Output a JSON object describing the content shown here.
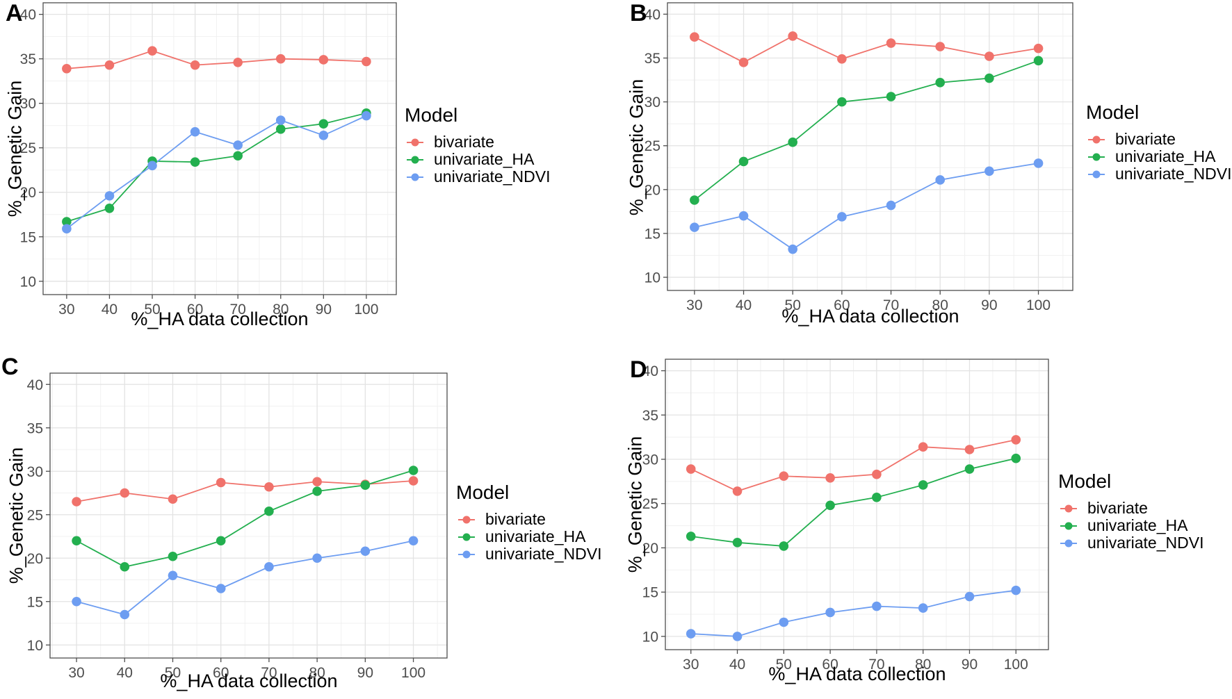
{
  "figure": {
    "y_axis_label": "%_Genetic Gain",
    "x_axis_label": "%_HA data collection",
    "legend_title": "Model",
    "series": [
      {
        "name": "bivariate",
        "color": "#F0726B"
      },
      {
        "name": "univariate_HA",
        "color": "#23AF4F"
      },
      {
        "name": "univariate_NDVI",
        "color": "#6D9DF1"
      }
    ],
    "panel_border_color": "#4D4D4D",
    "grid_major_color": "#E3E3E3",
    "grid_minor_color": "#F1F1F1",
    "tick_label_color": "#4D4D4D"
  },
  "chart_data": [
    {
      "panel": "A",
      "type": "line",
      "title": "",
      "xlabel": "%_HA data collection",
      "ylabel": "%_Genetic Gain",
      "x": [
        30,
        40,
        50,
        60,
        70,
        80,
        90,
        100
      ],
      "x_ticks": [
        30,
        40,
        50,
        60,
        70,
        80,
        90,
        100
      ],
      "y_ticks": [
        10,
        15,
        20,
        25,
        30,
        35,
        40
      ],
      "xlim": [
        24.5,
        107
      ],
      "ylim": [
        8.5,
        41.3
      ],
      "grid": true,
      "legend_position": "right",
      "series": [
        {
          "name": "bivariate",
          "values": [
            33.9,
            34.3,
            35.9,
            34.3,
            34.6,
            35.0,
            34.9,
            34.7
          ]
        },
        {
          "name": "univariate_HA",
          "values": [
            16.7,
            18.2,
            23.5,
            23.4,
            24.1,
            27.1,
            27.7,
            28.9
          ]
        },
        {
          "name": "univariate_NDVI",
          "values": [
            15.9,
            19.6,
            23.0,
            26.8,
            25.3,
            28.1,
            26.4,
            28.6
          ]
        }
      ]
    },
    {
      "panel": "B",
      "type": "line",
      "title": "",
      "xlabel": "%_HA data collection",
      "ylabel": "%_Genetic Gain",
      "x": [
        30,
        40,
        50,
        60,
        70,
        80,
        90,
        100
      ],
      "x_ticks": [
        30,
        40,
        50,
        60,
        70,
        80,
        90,
        100
      ],
      "y_ticks": [
        10,
        15,
        20,
        25,
        30,
        35,
        40
      ],
      "xlim": [
        24.5,
        107
      ],
      "ylim": [
        8.5,
        41.3
      ],
      "grid": true,
      "legend_position": "right",
      "series": [
        {
          "name": "bivariate",
          "values": [
            37.4,
            34.5,
            37.5,
            34.9,
            36.7,
            36.3,
            35.2,
            36.1
          ]
        },
        {
          "name": "univariate_HA",
          "values": [
            18.8,
            23.2,
            25.4,
            30.0,
            30.6,
            32.2,
            32.7,
            34.7
          ]
        },
        {
          "name": "univariate_NDVI",
          "values": [
            15.7,
            17.0,
            13.2,
            16.9,
            18.2,
            21.1,
            22.1,
            23.0
          ]
        }
      ]
    },
    {
      "panel": "C",
      "type": "line",
      "title": "",
      "xlabel": "%_HA data collection",
      "ylabel": "%_Genetic Gain",
      "x": [
        30,
        40,
        50,
        60,
        70,
        80,
        90,
        100
      ],
      "x_ticks": [
        30,
        40,
        50,
        60,
        70,
        80,
        90,
        100
      ],
      "y_ticks": [
        10,
        15,
        20,
        25,
        30,
        35,
        40
      ],
      "xlim": [
        24.5,
        107
      ],
      "ylim": [
        8.5,
        41.3
      ],
      "grid": true,
      "legend_position": "right",
      "series": [
        {
          "name": "bivariate",
          "values": [
            26.5,
            27.5,
            26.8,
            28.7,
            28.2,
            28.8,
            28.5,
            28.9
          ]
        },
        {
          "name": "univariate_HA",
          "values": [
            22.0,
            19.0,
            20.2,
            22.0,
            25.4,
            27.7,
            28.4,
            30.1
          ]
        },
        {
          "name": "univariate_NDVI",
          "values": [
            15.0,
            13.5,
            18.0,
            16.5,
            19.0,
            20.0,
            20.8,
            22.0
          ]
        }
      ]
    },
    {
      "panel": "D",
      "type": "line",
      "title": "",
      "xlabel": "%_HA data collection",
      "ylabel": "%_Genetic Gain",
      "x": [
        30,
        40,
        50,
        60,
        70,
        80,
        90,
        100
      ],
      "x_ticks": [
        30,
        40,
        50,
        60,
        70,
        80,
        90,
        100
      ],
      "y_ticks": [
        10,
        15,
        20,
        25,
        30,
        35,
        40
      ],
      "xlim": [
        24.5,
        107
      ],
      "ylim": [
        8.5,
        41.3
      ],
      "grid": true,
      "legend_position": "right",
      "series": [
        {
          "name": "bivariate",
          "values": [
            28.9,
            26.4,
            28.1,
            27.9,
            28.3,
            31.4,
            31.1,
            32.2
          ]
        },
        {
          "name": "univariate_HA",
          "values": [
            21.3,
            20.6,
            20.2,
            24.8,
            25.7,
            27.1,
            28.9,
            30.1
          ]
        },
        {
          "name": "univariate_NDVI",
          "values": [
            10.3,
            10.0,
            11.6,
            12.7,
            13.4,
            13.2,
            14.5,
            15.2
          ]
        }
      ]
    }
  ]
}
